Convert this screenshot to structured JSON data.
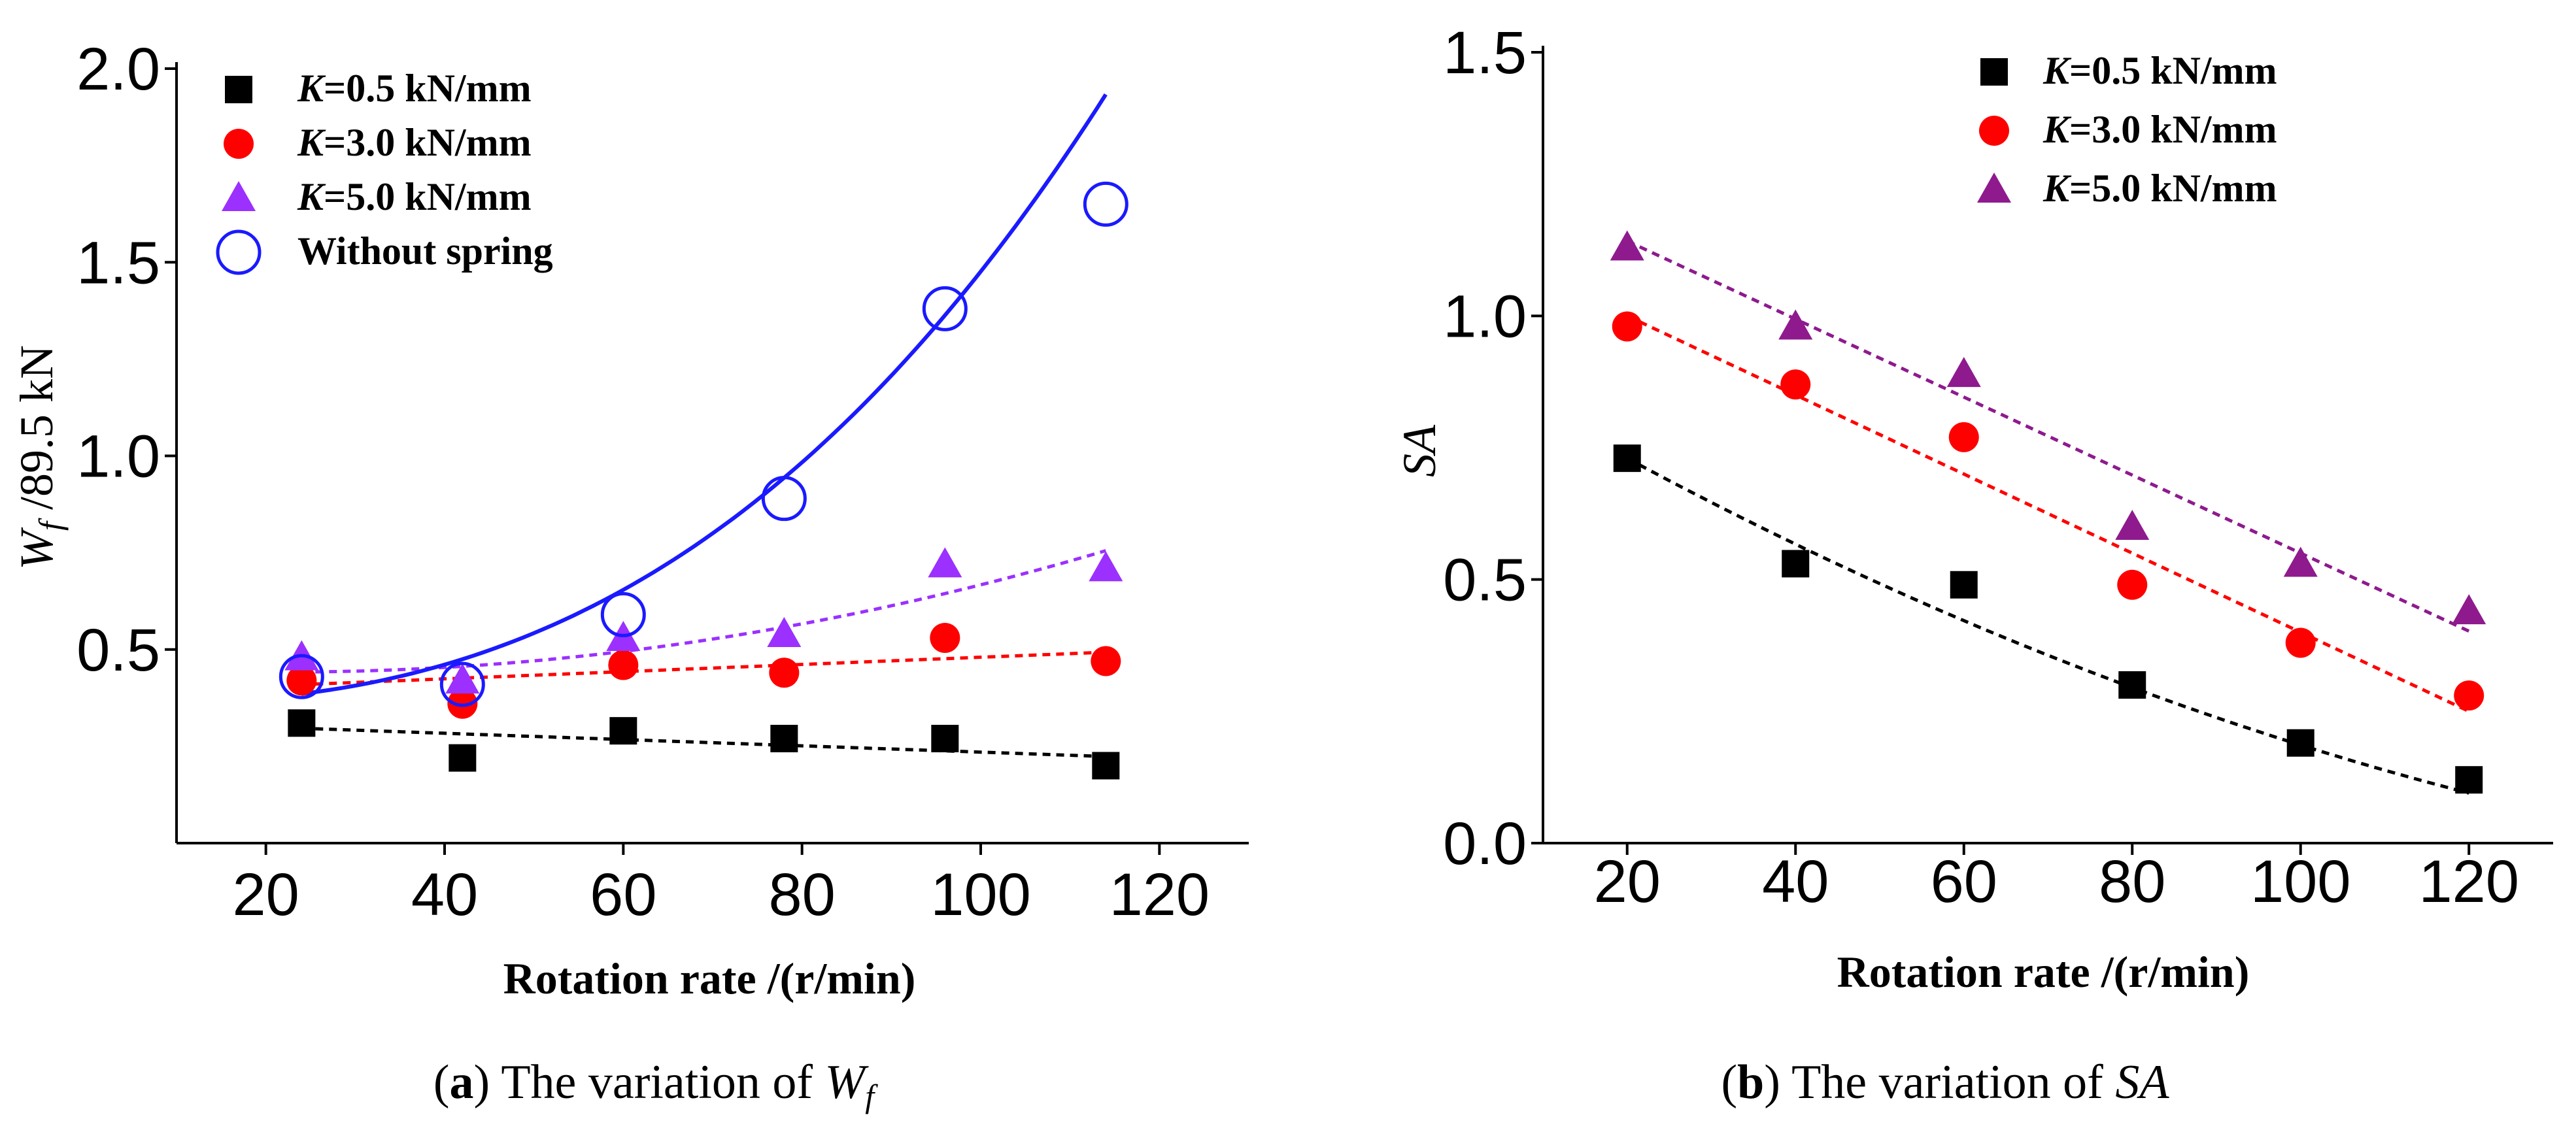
{
  "chart_data": [
    {
      "type": "scatter",
      "panel": "a",
      "caption": {
        "prefix": "(",
        "letter": "a",
        "mid": ") The variation of ",
        "symbol": "W",
        "subscript": "f"
      },
      "ylabel": {
        "symbol": "W",
        "subscript": "f",
        "rest": " /89.5 kN"
      },
      "xlabel": "Rotation rate /(r/min)",
      "xlim": [
        10,
        130
      ],
      "ylim": [
        0.0,
        2.0
      ],
      "xticks": [
        "20",
        "40",
        "60",
        "80",
        "100",
        "120"
      ],
      "yticks": [
        "0.5",
        "1.0",
        "1.5",
        "2.0"
      ],
      "ytick_values": [
        0.5,
        1.0,
        1.5,
        2.0
      ],
      "legend_position": "top-left",
      "series": [
        {
          "name": "=0.5 kN/mm",
          "label_prefix": "K",
          "color": "#000000",
          "marker": "square",
          "x": [
            24,
            42,
            60,
            78,
            96,
            114
          ],
          "y": [
            0.31,
            0.22,
            0.29,
            0.27,
            0.27,
            0.2
          ],
          "fit": {
            "kind": "linear",
            "x_range": [
              24,
              114
            ],
            "coef": [
              0.316,
              -0.00081
            ],
            "style": "dashed"
          }
        },
        {
          "name": "=3.0 kN/mm",
          "label_prefix": "K",
          "color": "#ff0000",
          "marker": "circle",
          "x": [
            24,
            42,
            60,
            78,
            96,
            114
          ],
          "y": [
            0.42,
            0.36,
            0.46,
            0.44,
            0.53,
            0.47
          ],
          "fit": {
            "kind": "linear",
            "x_range": [
              24,
              114
            ],
            "coef": [
              0.387,
              0.00093
            ],
            "style": "dashed"
          }
        },
        {
          "name": "=5.0 kN/mm",
          "label_prefix": "K",
          "color": "#9b30ff",
          "marker": "triangle",
          "x": [
            24,
            42,
            60,
            78,
            96,
            114
          ],
          "y": [
            0.48,
            0.42,
            0.53,
            0.54,
            0.72,
            0.71
          ],
          "fit": {
            "kind": "quadratic",
            "x_range": [
              24,
              114
            ],
            "coef": [
              0.4599,
              -0.00164,
              3.711e-05
            ],
            "style": "dashed"
          }
        },
        {
          "name": "Without spring",
          "label_prefix": "",
          "color": "#1a1aff",
          "marker": "open-circle",
          "x": [
            24,
            42,
            60,
            78,
            96,
            114
          ],
          "y": [
            0.43,
            0.41,
            0.59,
            0.89,
            1.38,
            1.65
          ],
          "fit": {
            "kind": "cubic",
            "x_range": [
              24,
              114
            ],
            "coef": [
              0.371,
              -0.0013,
              6.55e-05,
              5.8e-07
            ],
            "style": "solid"
          }
        }
      ]
    },
    {
      "type": "scatter",
      "panel": "b",
      "caption": {
        "prefix": "(",
        "letter": "b",
        "mid": ") The variation of ",
        "symbol": "SA"
      },
      "ylabel": {
        "symbol": "SA"
      },
      "xlabel": "Rotation rate /(r/min)",
      "xlim": [
        10,
        130
      ],
      "ylim": [
        0.0,
        1.5
      ],
      "xticks": [
        "20",
        "40",
        "60",
        "80",
        "100",
        "120"
      ],
      "yticks": [
        "0.0",
        "0.5",
        "1.0",
        "1.5"
      ],
      "ytick_values": [
        0.0,
        0.5,
        1.0,
        1.5
      ],
      "legend_position": "top-right",
      "series": [
        {
          "name": "=0.5 kN/mm",
          "label_prefix": "K",
          "color": "#000000",
          "marker": "square",
          "x": [
            20,
            40,
            60,
            80,
            100,
            120
          ],
          "y": [
            0.73,
            0.53,
            0.49,
            0.3,
            0.19,
            0.12
          ],
          "fit": {
            "kind": "quadratic",
            "x_range": [
              20,
              120
            ],
            "coef": [
              0.911,
              -0.0095,
              2.25e-05
            ],
            "style": "dashed"
          }
        },
        {
          "name": "=3.0 kN/mm",
          "label_prefix": "K",
          "color": "#ff0000",
          "marker": "circle",
          "x": [
            20,
            40,
            60,
            80,
            100,
            120
          ],
          "y": [
            0.98,
            0.87,
            0.77,
            0.49,
            0.38,
            0.28
          ],
          "fit": {
            "kind": "linear",
            "x_range": [
              20,
              120
            ],
            "coef": [
              1.15,
              -0.0075
            ],
            "style": "dashed"
          }
        },
        {
          "name": "=5.0 kN/mm",
          "label_prefix": "K",
          "color": "#8e1a8e",
          "marker": "triangle",
          "x": [
            20,
            40,
            60,
            80,
            100,
            120
          ],
          "y": [
            1.13,
            0.98,
            0.89,
            0.6,
            0.53,
            0.44
          ],
          "fit": {
            "kind": "linear",
            "x_range": [
              20,
              120
            ],
            "coef": [
              1.29,
              -0.0074
            ],
            "style": "dashed"
          }
        }
      ]
    }
  ]
}
